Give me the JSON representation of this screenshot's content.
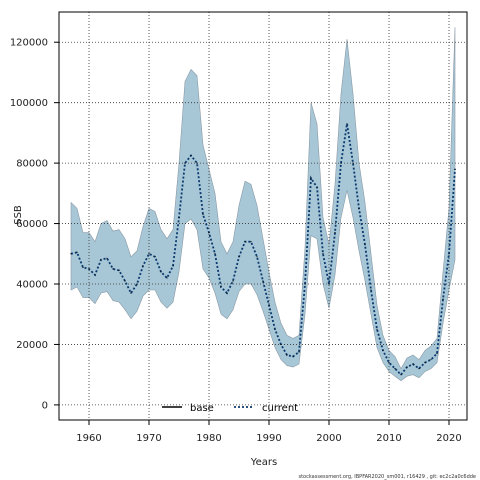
{
  "chart_data": {
    "type": "area",
    "xlabel": "Years",
    "ylabel": "SSB",
    "xlim": [
      1955,
      2023
    ],
    "ylim": [
      -5000,
      130000
    ],
    "xticks": [
      1960,
      1970,
      1980,
      1990,
      2000,
      2010,
      2020
    ],
    "yticks": [
      0,
      20000,
      40000,
      60000,
      80000,
      100000,
      120000
    ],
    "grid": true,
    "legend_position": "bottom-center",
    "legend": [
      {
        "label": "base",
        "style": "solid",
        "color": "#000000"
      },
      {
        "label": "current",
        "style": "dotted",
        "color": "#0b3a6e"
      }
    ],
    "band_color": "#a7c6d6",
    "footer": "stockassessment.org, IBPFAR2020_sm001, r16429 , git: ec2c2a0c6dde",
    "x": [
      1957,
      1958,
      1959,
      1960,
      1961,
      1962,
      1963,
      1964,
      1965,
      1966,
      1967,
      1968,
      1969,
      1970,
      1971,
      1972,
      1973,
      1974,
      1975,
      1976,
      1977,
      1978,
      1979,
      1980,
      1981,
      1982,
      1983,
      1984,
      1985,
      1986,
      1987,
      1988,
      1989,
      1990,
      1991,
      1992,
      1993,
      1994,
      1995,
      1996,
      1997,
      1998,
      1999,
      2000,
      2001,
      2002,
      2003,
      2004,
      2005,
      2006,
      2007,
      2008,
      2009,
      2010,
      2011,
      2012,
      2013,
      2014,
      2015,
      2016,
      2017,
      2018,
      2019,
      2020,
      2021
    ],
    "series": [
      {
        "name": "current",
        "values": [
          50000,
          50500,
          45500,
          45000,
          43000,
          48000,
          48500,
          45000,
          44500,
          41000,
          37000,
          40000,
          46000,
          50000,
          49000,
          44000,
          42000,
          46000,
          62000,
          80000,
          82500,
          80000,
          63000,
          57000,
          50000,
          39000,
          37000,
          41000,
          49000,
          54000,
          54000,
          49000,
          41000,
          33000,
          25000,
          20000,
          16500,
          16000,
          17500,
          40000,
          75000,
          72000,
          50000,
          40000,
          57000,
          80000,
          93000,
          80000,
          65000,
          53000,
          38000,
          25000,
          18000,
          14000,
          12000,
          10000,
          12500,
          13500,
          12000,
          14000,
          15000,
          17000,
          35000,
          50000,
          78000
        ]
      },
      {
        "name": "base-lower",
        "values": [
          38000,
          39000,
          35500,
          35500,
          33500,
          37000,
          37500,
          34500,
          34000,
          31500,
          28500,
          31000,
          36000,
          38000,
          38000,
          34000,
          32000,
          34000,
          44000,
          60000,
          61500,
          58000,
          45000,
          42000,
          37000,
          30000,
          28500,
          31500,
          37500,
          40000,
          40000,
          36500,
          31000,
          25000,
          19000,
          15000,
          13000,
          12500,
          13500,
          30000,
          56000,
          55000,
          40000,
          32000,
          43000,
          62000,
          71000,
          62000,
          51000,
          41000,
          30000,
          19000,
          14000,
          11000,
          9500,
          8000,
          9500,
          10000,
          9000,
          11000,
          12000,
          14000,
          27000,
          38000,
          48000
        ]
      },
      {
        "name": "base-upper",
        "values": [
          67000,
          65000,
          57000,
          57000,
          54000,
          60000,
          61000,
          57500,
          58000,
          55000,
          49000,
          51000,
          59000,
          65000,
          64000,
          58000,
          55000,
          58000,
          80000,
          107000,
          111000,
          109000,
          86000,
          78000,
          70000,
          54000,
          50000,
          54000,
          66000,
          74000,
          73000,
          66000,
          55000,
          44000,
          34000,
          27000,
          23000,
          22000,
          23000,
          52000,
          100000,
          93000,
          62000,
          53000,
          73000,
          103000,
          121000,
          103000,
          80000,
          67000,
          50000,
          33000,
          23000,
          18000,
          16000,
          12000,
          15500,
          16500,
          15000,
          18000,
          19500,
          22000,
          44000,
          65000,
          125000
        ]
      }
    ]
  }
}
